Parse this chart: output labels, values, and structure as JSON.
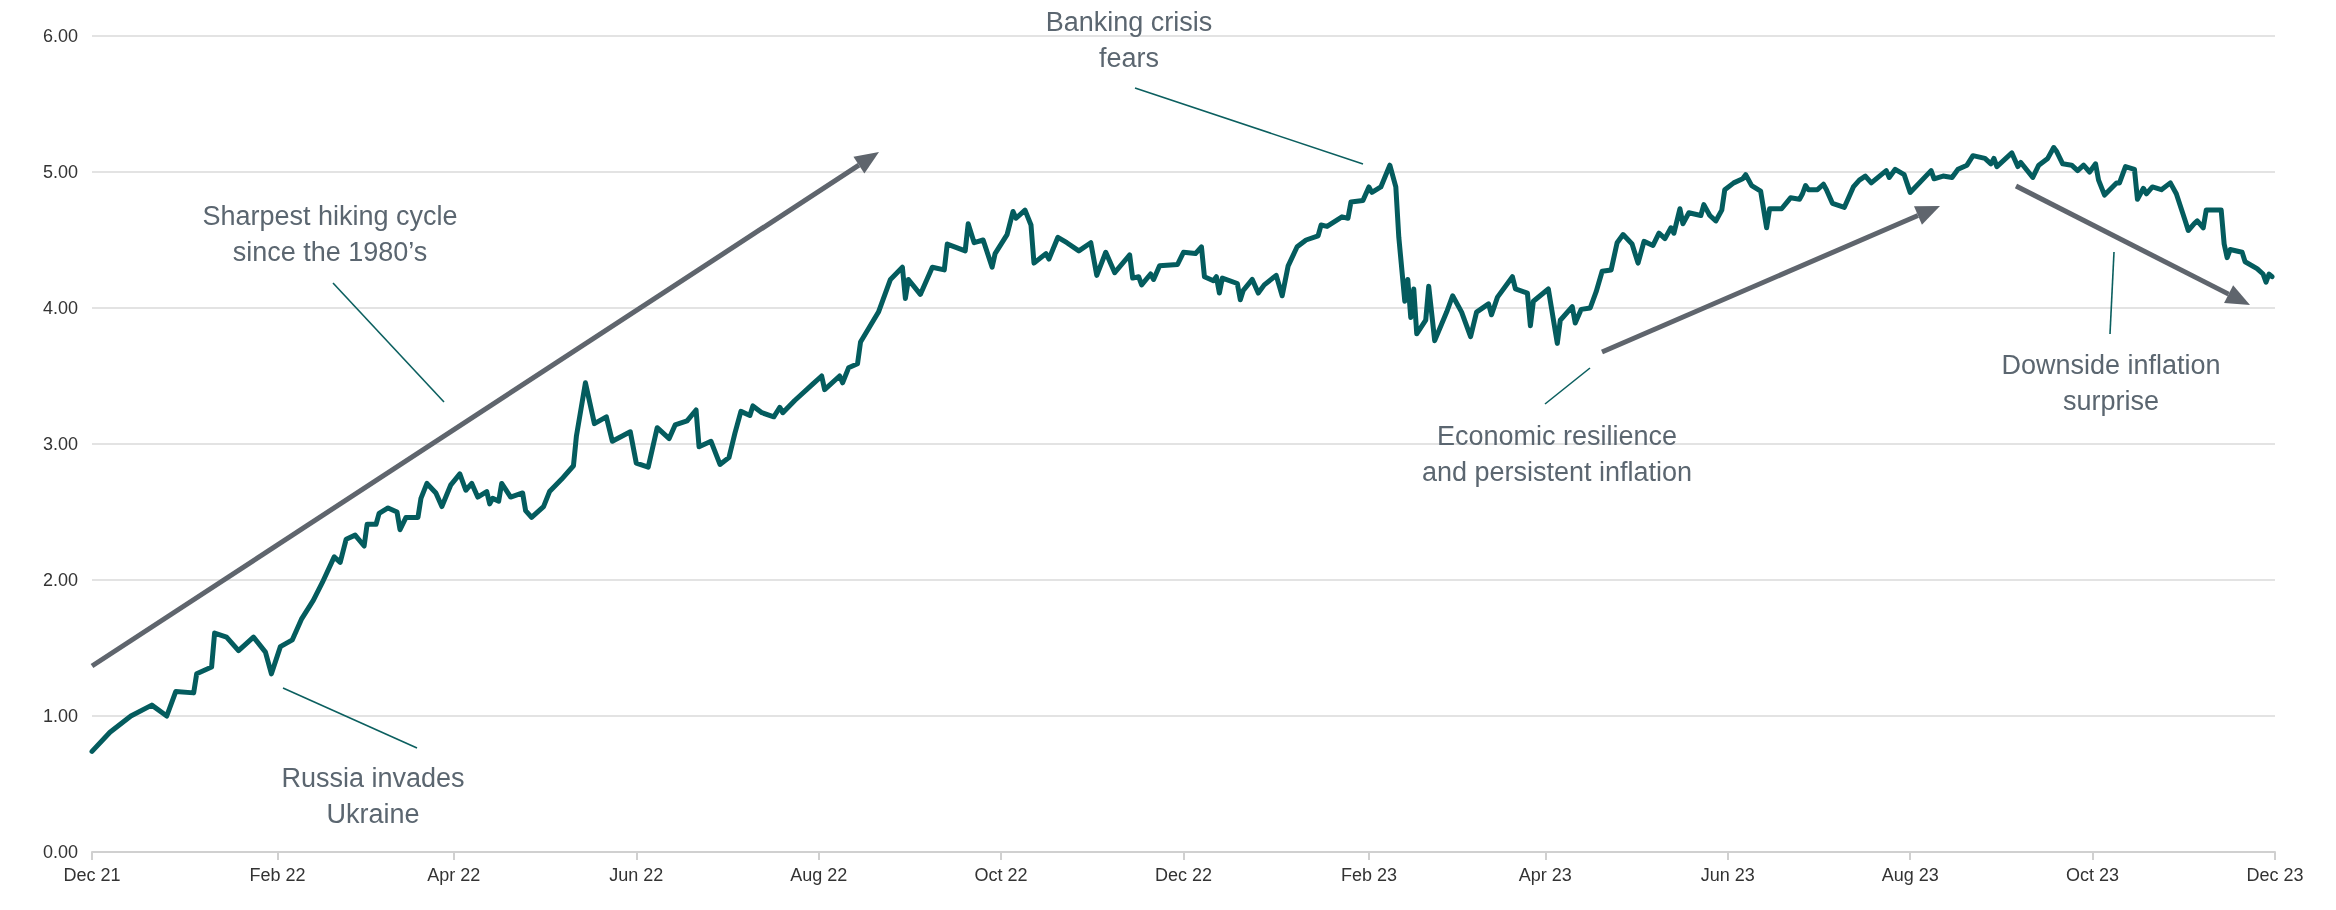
{
  "chart_data": {
    "type": "line",
    "color": "#045c5e",
    "line_style": "solid",
    "grid": "y",
    "xlim": [
      "2021-12-01",
      "2023-12-01"
    ],
    "xticks": [
      {
        "value": "2021-12-01",
        "label": "Dec 21"
      },
      {
        "value": "2022-02-01",
        "label": "Feb 22"
      },
      {
        "value": "2022-04-01",
        "label": "Apr 22"
      },
      {
        "value": "2022-06-01",
        "label": "Jun 22"
      },
      {
        "value": "2022-08-01",
        "label": "Aug 22"
      },
      {
        "value": "2022-10-01",
        "label": "Oct 22"
      },
      {
        "value": "2022-12-01",
        "label": "Dec 22"
      },
      {
        "value": "2023-02-01",
        "label": "Feb 23"
      },
      {
        "value": "2023-04-01",
        "label": "Apr 23"
      },
      {
        "value": "2023-06-01",
        "label": "Jun 23"
      },
      {
        "value": "2023-08-01",
        "label": "Aug 23"
      },
      {
        "value": "2023-10-01",
        "label": "Oct 23"
      },
      {
        "value": "2023-12-01",
        "label": "Dec 23"
      }
    ],
    "ylim": [
      0,
      6
    ],
    "yticks": [
      {
        "value": 0,
        "label": "0.00"
      },
      {
        "value": 1,
        "label": "1.00"
      },
      {
        "value": 2,
        "label": "2.00"
      },
      {
        "value": 3,
        "label": "3.00"
      },
      {
        "value": 4,
        "label": "4.00"
      },
      {
        "value": 5,
        "label": "5.00"
      },
      {
        "value": 6,
        "label": "6.00"
      }
    ],
    "annotations": [
      "Sharpest hiking cycle since the 1980’s",
      "Russia invades Ukraine",
      "Banking crisis fears",
      "Economic resilience and persistent inflation",
      "Downside inflation surprise"
    ],
    "x": [
      "2021-12-01",
      "2021-12-07",
      "2021-12-14",
      "2021-12-21",
      "2021-12-26",
      "2021-12-29",
      "2022-01-04",
      "2022-01-05",
      "2022-01-10",
      "2022-01-11",
      "2022-01-15",
      "2022-01-19",
      "2022-01-24",
      "2022-01-28",
      "2022-01-30",
      "2022-02-02",
      "2022-02-06",
      "2022-02-09",
      "2022-02-13",
      "2022-02-16",
      "2022-02-20",
      "2022-02-22",
      "2022-02-24",
      "2022-02-27",
      "2022-03-02",
      "2022-03-03",
      "2022-03-06",
      "2022-03-07",
      "2022-03-10",
      "2022-03-13",
      "2022-03-14",
      "2022-03-16",
      "2022-03-20",
      "2022-03-21",
      "2022-03-23",
      "2022-03-26",
      "2022-03-28",
      "2022-03-31",
      "2022-04-03",
      "2022-04-05",
      "2022-04-07",
      "2022-04-09",
      "2022-04-12",
      "2022-04-13",
      "2022-04-14",
      "2022-04-16",
      "2022-04-17",
      "2022-04-20",
      "2022-04-24",
      "2022-04-25",
      "2022-04-27",
      "2022-05-01",
      "2022-05-03",
      "2022-05-07",
      "2022-05-11",
      "2022-05-12",
      "2022-05-15",
      "2022-05-18",
      "2022-05-22",
      "2022-05-24",
      "2022-05-30",
      "2022-06-01",
      "2022-06-05",
      "2022-06-08",
      "2022-06-12",
      "2022-06-14",
      "2022-06-18",
      "2022-06-21",
      "2022-06-22",
      "2022-06-26",
      "2022-06-29",
      "2022-07-02",
      "2022-07-04",
      "2022-07-06",
      "2022-07-09",
      "2022-07-10",
      "2022-07-13",
      "2022-07-17",
      "2022-07-19",
      "2022-07-20",
      "2022-07-24",
      "2022-07-30",
      "2022-08-02",
      "2022-08-03",
      "2022-08-08",
      "2022-08-09",
      "2022-08-11",
      "2022-08-14",
      "2022-08-15",
      "2022-08-18",
      "2022-08-21",
      "2022-08-25",
      "2022-08-29",
      "2022-08-30",
      "2022-08-31",
      "2022-09-04",
      "2022-09-08",
      "2022-09-12",
      "2022-09-13",
      "2022-09-19",
      "2022-09-20",
      "2022-09-22",
      "2022-09-25",
      "2022-09-28",
      "2022-09-29",
      "2022-10-03",
      "2022-10-05",
      "2022-10-06",
      "2022-10-09",
      "2022-10-11",
      "2022-10-12",
      "2022-10-16",
      "2022-10-17",
      "2022-10-20",
      "2022-10-23",
      "2022-10-27",
      "2022-10-31",
      "2022-11-02",
      "2022-11-05",
      "2022-11-08",
      "2022-11-13",
      "2022-11-14",
      "2022-11-16",
      "2022-11-17",
      "2022-11-20",
      "2022-11-21",
      "2022-11-23",
      "2022-11-29",
      "2022-12-01",
      "2022-12-05",
      "2022-12-07",
      "2022-12-08",
      "2022-12-11",
      "2022-12-12",
      "2022-12-13",
      "2022-12-14",
      "2022-12-19",
      "2022-12-20",
      "2022-12-21",
      "2022-12-24",
      "2022-12-26",
      "2022-12-28",
      "2023-01-01",
      "2023-01-03",
      "2023-01-05",
      "2023-01-08",
      "2023-01-11",
      "2023-01-15",
      "2023-01-16",
      "2023-01-18",
      "2023-01-23",
      "2023-01-25",
      "2023-01-26",
      "2023-01-30",
      "2023-02-01",
      "2023-02-02",
      "2023-02-05",
      "2023-02-08",
      "2023-02-10",
      "2023-02-11",
      "2023-02-13",
      "2023-02-14",
      "2023-02-15",
      "2023-02-16",
      "2023-02-17",
      "2023-02-20",
      "2023-02-21",
      "2023-02-23",
      "2023-02-27",
      "2023-03-01",
      "2023-03-04",
      "2023-03-07",
      "2023-03-09",
      "2023-03-13",
      "2023-03-14",
      "2023-03-16",
      "2023-03-21",
      "2023-03-22",
      "2023-03-26",
      "2023-03-27",
      "2023-03-28",
      "2023-04-02",
      "2023-04-05",
      "2023-04-06",
      "2023-04-10",
      "2023-04-11",
      "2023-04-13",
      "2023-04-16",
      "2023-04-18",
      "2023-04-20",
      "2023-04-23",
      "2023-04-25",
      "2023-04-27",
      "2023-04-30",
      "2023-05-02",
      "2023-05-04",
      "2023-05-07",
      "2023-05-09",
      "2023-05-11",
      "2023-05-13",
      "2023-05-14",
      "2023-05-16",
      "2023-05-17",
      "2023-05-19",
      "2023-05-23",
      "2023-05-24",
      "2023-05-26",
      "2023-05-28",
      "2023-05-30",
      "2023-05-31",
      "2023-06-03",
      "2023-06-06",
      "2023-06-07",
      "2023-06-09",
      "2023-06-12",
      "2023-06-14",
      "2023-06-15",
      "2023-06-19",
      "2023-06-22",
      "2023-06-25",
      "2023-06-26",
      "2023-06-27",
      "2023-06-28",
      "2023-07-01",
      "2023-07-03",
      "2023-07-04",
      "2023-07-06",
      "2023-07-10",
      "2023-07-13",
      "2023-07-15",
      "2023-07-17",
      "2023-07-19",
      "2023-07-24",
      "2023-07-25",
      "2023-07-27",
      "2023-07-30",
      "2023-08-01",
      "2023-08-08",
      "2023-08-09",
      "2023-08-12",
      "2023-08-15",
      "2023-08-17",
      "2023-08-20",
      "2023-08-22",
      "2023-08-26",
      "2023-08-28",
      "2023-08-29",
      "2023-08-30",
      "2023-09-04",
      "2023-09-06",
      "2023-09-07",
      "2023-09-11",
      "2023-09-13",
      "2023-09-16",
      "2023-09-18",
      "2023-09-19",
      "2023-09-21",
      "2023-09-24",
      "2023-09-26",
      "2023-09-28",
      "2023-09-30",
      "2023-10-02",
      "2023-10-03",
      "2023-10-05",
      "2023-10-09",
      "2023-10-10",
      "2023-10-12",
      "2023-10-15",
      "2023-10-16",
      "2023-10-18",
      "2023-10-19",
      "2023-10-21",
      "2023-10-24",
      "2023-10-27",
      "2023-10-29",
      "2023-11-01",
      "2023-11-02",
      "2023-11-04",
      "2023-11-05",
      "2023-11-07",
      "2023-11-08",
      "2023-11-13",
      "2023-11-14",
      "2023-11-15",
      "2023-11-16",
      "2023-11-20",
      "2023-11-21",
      "2023-11-25",
      "2023-11-27",
      "2023-11-28",
      "2023-11-29",
      "2023-11-30"
    ],
    "values": [
      0.74,
      0.88,
      1.0,
      1.08,
      1.0,
      1.18,
      1.17,
      1.31,
      1.36,
      1.61,
      1.58,
      1.48,
      1.58,
      1.47,
      1.31,
      1.51,
      1.56,
      1.71,
      1.85,
      1.98,
      2.17,
      2.13,
      2.3,
      2.33,
      2.25,
      2.41,
      2.41,
      2.49,
      2.53,
      2.5,
      2.37,
      2.46,
      2.46,
      2.6,
      2.71,
      2.64,
      2.54,
      2.7,
      2.78,
      2.66,
      2.71,
      2.61,
      2.65,
      2.56,
      2.6,
      2.58,
      2.71,
      2.61,
      2.64,
      2.51,
      2.46,
      2.54,
      2.65,
      2.74,
      2.84,
      3.06,
      3.45,
      3.15,
      3.2,
      3.02,
      3.09,
      2.86,
      2.83,
      3.12,
      3.04,
      3.14,
      3.17,
      3.25,
      2.98,
      3.02,
      2.85,
      2.9,
      3.08,
      3.24,
      3.21,
      3.28,
      3.23,
      3.2,
      3.27,
      3.23,
      3.32,
      3.44,
      3.5,
      3.4,
      3.5,
      3.45,
      3.56,
      3.59,
      3.75,
      3.86,
      3.97,
      4.21,
      4.3,
      4.07,
      4.21,
      4.1,
      4.3,
      4.28,
      4.47,
      4.42,
      4.62,
      4.48,
      4.5,
      4.3,
      4.4,
      4.54,
      4.71,
      4.66,
      4.72,
      4.61,
      4.33,
      4.4,
      4.36,
      4.52,
      4.48,
      4.42,
      4.48,
      4.24,
      4.41,
      4.26,
      4.39,
      4.22,
      4.23,
      4.17,
      4.25,
      4.21,
      4.31,
      4.32,
      4.41,
      4.4,
      4.45,
      4.23,
      4.2,
      4.23,
      4.11,
      4.22,
      4.18,
      4.06,
      4.13,
      4.21,
      4.11,
      4.17,
      4.24,
      4.09,
      4.31,
      4.45,
      4.5,
      4.53,
      4.61,
      4.6,
      4.67,
      4.66,
      4.78,
      4.79,
      4.89,
      4.85,
      4.89,
      5.05,
      4.89,
      4.52,
      4.05,
      4.21,
      3.93,
      4.14,
      3.81,
      3.91,
      4.16,
      3.76,
      3.97,
      4.09,
      3.97,
      3.79,
      3.97,
      4.03,
      3.95,
      4.08,
      4.23,
      4.14,
      4.11,
      3.87,
      4.05,
      4.14,
      3.74,
      3.91,
      4.01,
      3.89,
      3.99,
      4.0,
      4.12,
      4.27,
      4.28,
      4.48,
      4.54,
      4.47,
      4.33,
      4.49,
      4.46,
      4.55,
      4.51,
      4.59,
      4.55,
      4.73,
      4.62,
      4.7,
      4.68,
      4.76,
      4.68,
      4.64,
      4.72,
      4.87,
      4.92,
      4.95,
      4.98,
      4.9,
      4.86,
      4.59,
      4.73,
      4.73,
      4.81,
      4.8,
      4.84,
      4.9,
      4.87,
      4.87,
      4.91,
      4.87,
      4.77,
      4.74,
      4.89,
      4.94,
      4.97,
      4.92,
      5.01,
      4.96,
      5.02,
      4.98,
      4.85,
      5.01,
      4.95,
      4.97,
      4.96,
      5.02,
      5.05,
      5.12,
      5.1,
      5.06,
      5.1,
      5.04,
      5.14,
      5.04,
      5.07,
      4.96,
      5.05,
      5.1,
      5.18,
      5.15,
      5.06,
      5.05,
      5.01,
      5.05,
      5.0,
      5.06,
      4.94,
      4.83,
      4.92,
      4.92,
      5.04,
      5.02,
      4.8,
      4.88,
      4.84,
      4.89,
      4.87,
      4.92,
      4.84,
      4.64,
      4.57,
      4.62,
      4.64,
      4.59,
      4.72,
      4.72,
      4.47,
      4.37,
      4.43,
      4.41,
      4.34,
      4.29,
      4.25,
      4.19,
      4.25,
      4.23
    ]
  }
}
